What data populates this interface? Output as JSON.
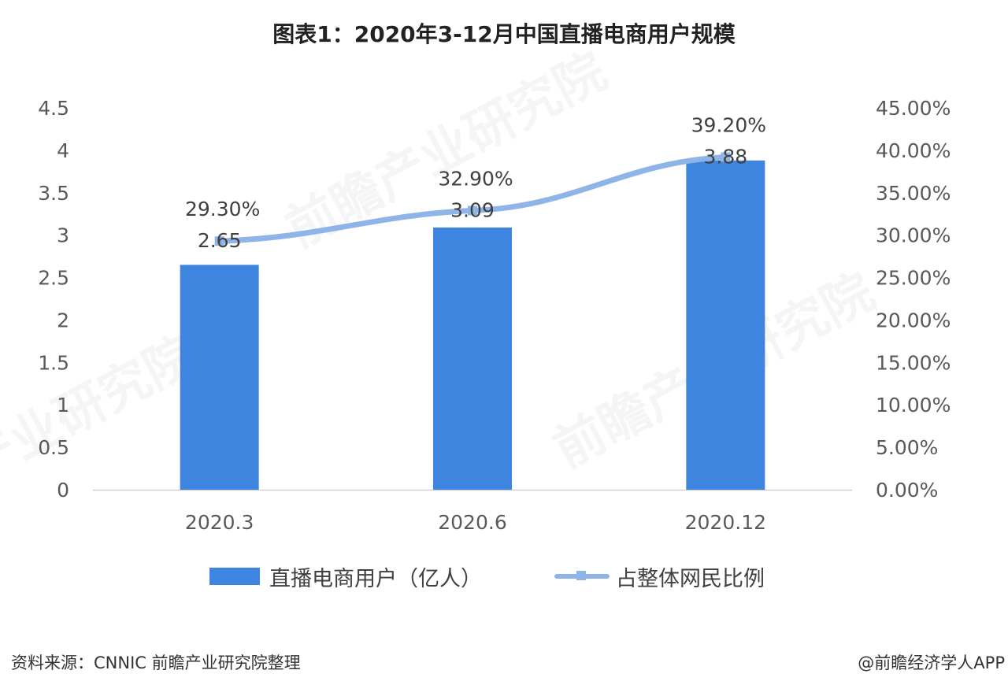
{
  "page": {
    "title": "图表1：2020年3-12月中国直播电商用户规模",
    "source": "资料来源：CNNIC 前瞻产业研究院整理",
    "credit": "@前瞻经济学人APP"
  },
  "chart_data": {
    "type": "bar",
    "title": "图表1：2020年3-12月中国直播电商用户规模",
    "categories": [
      "2020.3",
      "2020.6",
      "2020.12"
    ],
    "series": [
      {
        "name": "直播电商用户（亿人）",
        "type": "bar",
        "axis": "left",
        "values": [
          2.65,
          3.09,
          3.88
        ],
        "labels": [
          "2.65",
          "3.09",
          "3.88"
        ],
        "color": "#3d85de"
      },
      {
        "name": "占整体网民比例",
        "type": "line",
        "axis": "right",
        "values": [
          29.3,
          32.9,
          39.2
        ],
        "labels": [
          "29.30%",
          "32.90%",
          "39.20%"
        ],
        "color": "#8fb4e8"
      }
    ],
    "y_left": {
      "min": 0,
      "max": 4.5,
      "ticks": [
        "0",
        "0.5",
        "1",
        "1.5",
        "2",
        "2.5",
        "3",
        "3.5",
        "4",
        "4.5"
      ]
    },
    "y_right": {
      "min": 0,
      "max": 45,
      "ticks": [
        "0.00%",
        "5.00%",
        "10.00%",
        "15.00%",
        "20.00%",
        "25.00%",
        "30.00%",
        "35.00%",
        "40.00%",
        "45.00%"
      ]
    },
    "grid": false,
    "legend": "bottom"
  },
  "colors": {
    "bar": "#3d85de",
    "line": "#8fb4e8",
    "axis": "#d0d0d0"
  }
}
